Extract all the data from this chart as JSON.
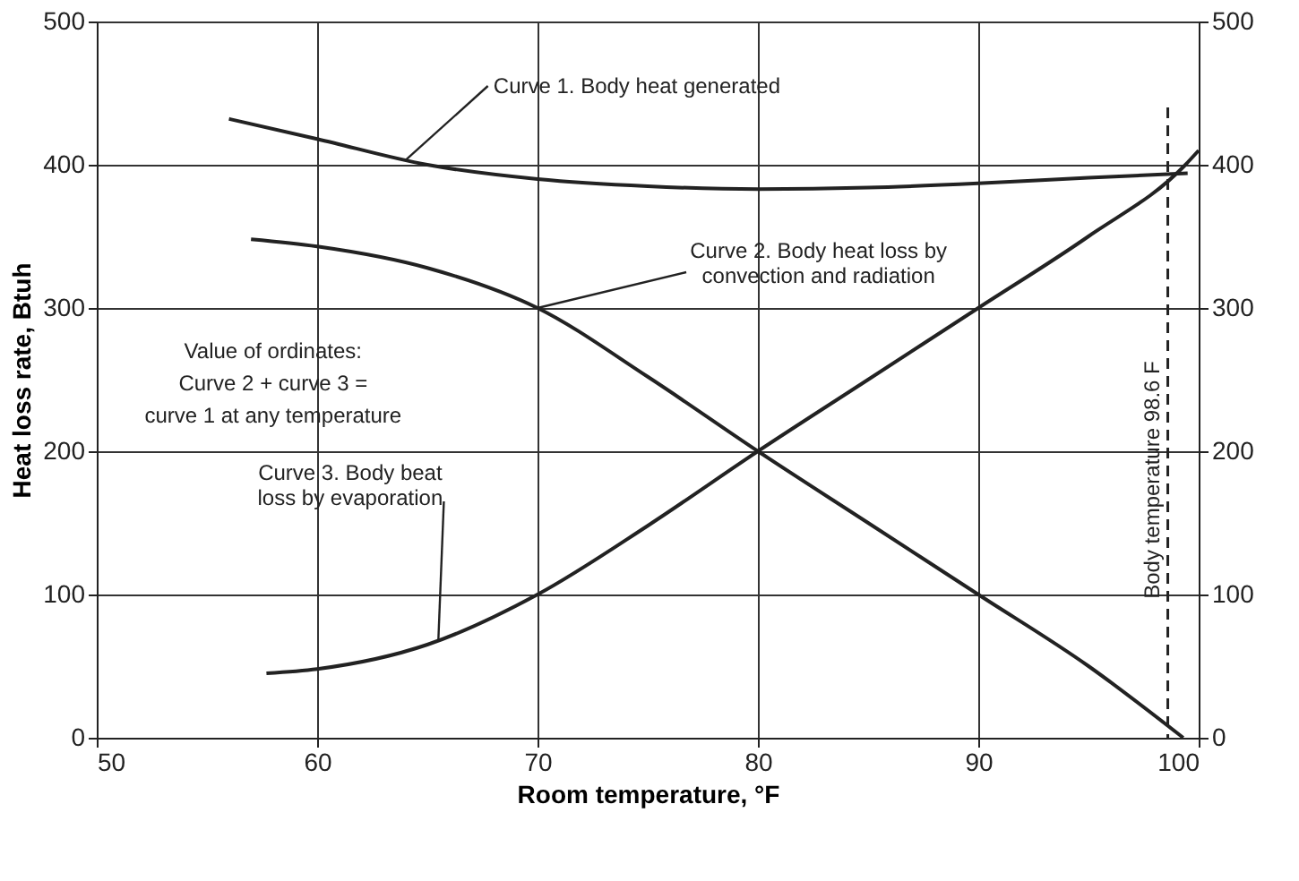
{
  "chart_data": {
    "type": "line",
    "xlabel": "Room temperature, °F",
    "ylabel": "Heat loss rate, Btuh",
    "xlim": [
      50,
      100
    ],
    "xticks": [
      50,
      60,
      70,
      80,
      90,
      100
    ],
    "ylim": [
      0,
      500
    ],
    "yticks": [
      0,
      100,
      200,
      300,
      400,
      500
    ],
    "y2lim": [
      0,
      500
    ],
    "y2ticks": [
      0,
      100,
      200,
      300,
      400,
      500
    ],
    "grid": true,
    "marker": "none",
    "line_style": "solid",
    "series": [
      {
        "color": "#222222",
        "x": [
          56,
          60,
          65,
          70,
          75,
          80,
          85,
          90,
          95,
          99.5
        ],
        "values": [
          432,
          418,
          400,
          390,
          385,
          383,
          384,
          387,
          391,
          394
        ]
      },
      {
        "color": "#222222",
        "x": [
          57,
          60,
          65,
          70,
          75,
          80,
          85,
          90,
          95,
          99.3
        ],
        "values": [
          348,
          343,
          328,
          300,
          252,
          200,
          150,
          100,
          50,
          0
        ]
      },
      {
        "color": "#222222",
        "x": [
          57.7,
          60,
          65,
          70,
          75,
          80,
          85,
          90,
          95,
          99.4,
          100
        ],
        "values": [
          45,
          48,
          65,
          100,
          148,
          200,
          250,
          300,
          350,
          400,
          410
        ]
      }
    ],
    "ref_lines": [
      {
        "axis": "x",
        "value": 98.6,
        "label": "Body temperature 98.6 F",
        "line_style": "dashed",
        "color": "#222222"
      }
    ],
    "annotations": [
      {
        "text": "Curve 1. Body heat generated",
        "x": 64,
        "y": 403
      },
      {
        "text": "Curve 2. Body heat loss by\nconvection and radiation",
        "x": 70,
        "y": 300
      },
      {
        "text": "Curve 3. Body beat\nloss by evaporation",
        "x": 65.5,
        "y": 68
      },
      "Value of ordinates:\nCurve 2 + curve 3 =\ncurve 1 at any temperature"
    ]
  }
}
